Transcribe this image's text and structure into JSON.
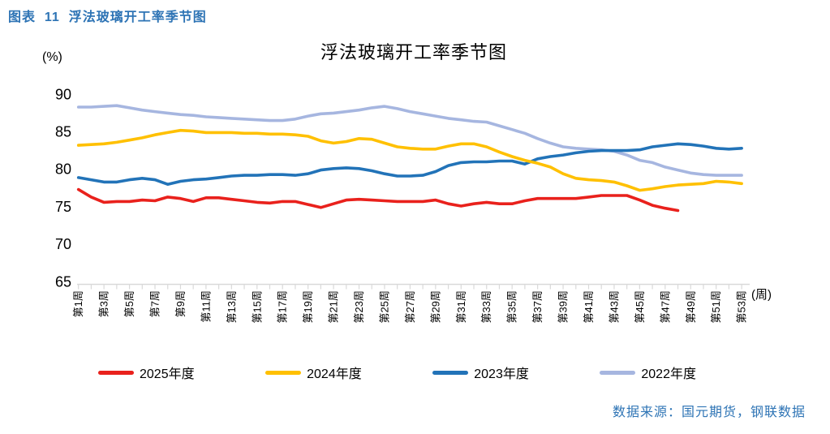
{
  "figure_caption": "图表  11  浮法玻璃开工率季节图",
  "source_note": "数据来源：国元期货，钢联数据",
  "accent_colors": {
    "caption_blue": "#2e74b5",
    "axis_gray": "#d9d9d9"
  },
  "chart_data": {
    "type": "line",
    "title": "浮法玻璃开工率季节图",
    "y_unit_label": "(%)",
    "x_unit_label": "(周)",
    "ylabel": "",
    "xlabel": "",
    "ylim": [
      65,
      90
    ],
    "y_ticks": [
      65,
      70,
      75,
      80,
      85,
      90
    ],
    "grid": "off",
    "legend_position": "bottom",
    "weeks_total": 53,
    "x_tick_labels": [
      "第1周",
      "第3周",
      "第5周",
      "第7周",
      "第9周",
      "第11周",
      "第13周",
      "第15周",
      "第17周",
      "第19周",
      "第21周",
      "第23周",
      "第25周",
      "第27周",
      "第29周",
      "第31周",
      "第33周",
      "第35周",
      "第37周",
      "第39周",
      "第41周",
      "第43周",
      "第45周",
      "第47周",
      "第49周",
      "第51周",
      "第53周"
    ],
    "series": [
      {
        "name": "2025年度",
        "color": "#e9211c",
        "start_week": 1,
        "values": [
          77.3,
          76.3,
          75.6,
          75.7,
          75.7,
          75.9,
          75.8,
          76.3,
          76.1,
          75.7,
          76.2,
          76.2,
          76.0,
          75.8,
          75.6,
          75.5,
          75.7,
          75.7,
          75.3,
          74.9,
          75.4,
          75.9,
          76.0,
          75.9,
          75.8,
          75.7,
          75.7,
          75.7,
          75.9,
          75.4,
          75.1,
          75.4,
          75.6,
          75.4,
          75.4,
          75.8,
          76.1,
          76.1,
          76.1,
          76.1,
          76.3,
          76.5,
          76.5,
          76.5,
          75.9,
          75.2,
          74.8,
          74.5
        ]
      },
      {
        "name": "2024年度",
        "color": "#ffc000",
        "start_week": 1,
        "values": [
          83.2,
          83.3,
          83.4,
          83.6,
          83.9,
          84.2,
          84.6,
          84.9,
          85.2,
          85.1,
          84.9,
          84.9,
          84.9,
          84.8,
          84.8,
          84.7,
          84.7,
          84.6,
          84.4,
          83.8,
          83.5,
          83.7,
          84.1,
          84.0,
          83.5,
          83.0,
          82.8,
          82.7,
          82.7,
          83.1,
          83.4,
          83.4,
          83.0,
          82.3,
          81.7,
          81.2,
          80.8,
          80.3,
          79.4,
          78.8,
          78.6,
          78.5,
          78.3,
          77.8,
          77.2,
          77.4,
          77.7,
          77.9,
          78.0,
          78.1,
          78.4,
          78.3,
          78.1
        ]
      },
      {
        "name": "2023年度",
        "color": "#2273b8",
        "start_week": 1,
        "values": [
          78.9,
          78.6,
          78.3,
          78.3,
          78.6,
          78.8,
          78.6,
          78.0,
          78.4,
          78.6,
          78.7,
          78.9,
          79.1,
          79.2,
          79.2,
          79.3,
          79.3,
          79.2,
          79.4,
          79.9,
          80.1,
          80.2,
          80.1,
          79.8,
          79.4,
          79.1,
          79.1,
          79.2,
          79.7,
          80.5,
          80.9,
          81.0,
          81.0,
          81.1,
          81.1,
          80.7,
          81.4,
          81.7,
          81.9,
          82.2,
          82.4,
          82.5,
          82.5,
          82.5,
          82.6,
          83.0,
          83.2,
          83.4,
          83.3,
          83.1,
          82.8,
          82.7,
          82.8
        ]
      },
      {
        "name": "2022年度",
        "color": "#a6b6e0",
        "start_week": 1,
        "values": [
          88.3,
          88.3,
          88.4,
          88.5,
          88.2,
          87.9,
          87.7,
          87.5,
          87.3,
          87.2,
          87.0,
          86.9,
          86.8,
          86.7,
          86.6,
          86.5,
          86.5,
          86.7,
          87.1,
          87.4,
          87.5,
          87.7,
          87.9,
          88.2,
          88.4,
          88.1,
          87.7,
          87.4,
          87.1,
          86.8,
          86.6,
          86.4,
          86.3,
          85.8,
          85.3,
          84.8,
          84.1,
          83.5,
          83.0,
          82.8,
          82.7,
          82.6,
          82.4,
          81.9,
          81.2,
          80.9,
          80.3,
          79.9,
          79.5,
          79.3,
          79.2,
          79.2,
          79.2
        ]
      }
    ]
  }
}
